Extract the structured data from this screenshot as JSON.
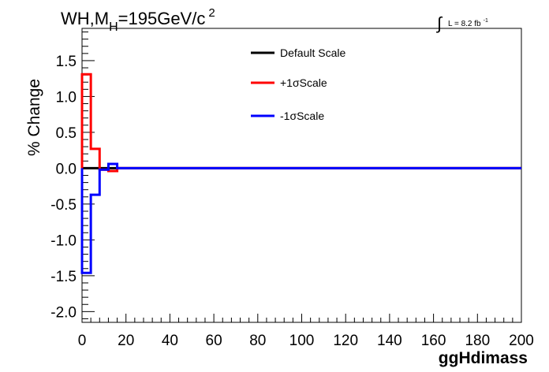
{
  "chart_data": {
    "type": "line",
    "title_main": "WH,M",
    "title_sub": "H",
    "title_rest": "=195GeV/c",
    "title_sup": "2",
    "lumi_integral": "∫",
    "lumi_text": "L = 8.2 fb",
    "lumi_sup": "-1",
    "xlabel": "ggHdimass",
    "ylabel": "% Change",
    "xlim": [
      0,
      200
    ],
    "ylim": [
      -2.15,
      1.95
    ],
    "x_ticks": [
      0,
      20,
      40,
      60,
      80,
      100,
      120,
      140,
      160,
      180,
      200
    ],
    "y_ticks": [
      -2.0,
      -1.5,
      -1.0,
      -0.5,
      0.0,
      0.5,
      1.0,
      1.5
    ],
    "y_tick_labels": [
      "-2.0",
      "-1.5",
      "-1.0",
      "-0.5",
      "0.0",
      "0.5",
      "1.0",
      "1.5"
    ],
    "legend_position": "top-center",
    "series": [
      {
        "name": "Default Scale",
        "color": "#000000",
        "bin_edges": [
          0,
          4,
          8,
          12,
          16,
          200
        ],
        "values": [
          0,
          0,
          0,
          0,
          0
        ]
      },
      {
        "name": "+1σScale",
        "color": "#ff0000",
        "bin_edges": [
          0,
          4,
          8,
          12,
          16,
          200
        ],
        "values": [
          1.31,
          0.27,
          -0.02,
          -0.04,
          0
        ]
      },
      {
        "name": "-1σScale",
        "color": "#0000ff",
        "bin_edges": [
          0,
          4,
          8,
          12,
          16,
          200
        ],
        "values": [
          -1.46,
          -0.37,
          -0.02,
          0.06,
          0
        ]
      }
    ]
  }
}
